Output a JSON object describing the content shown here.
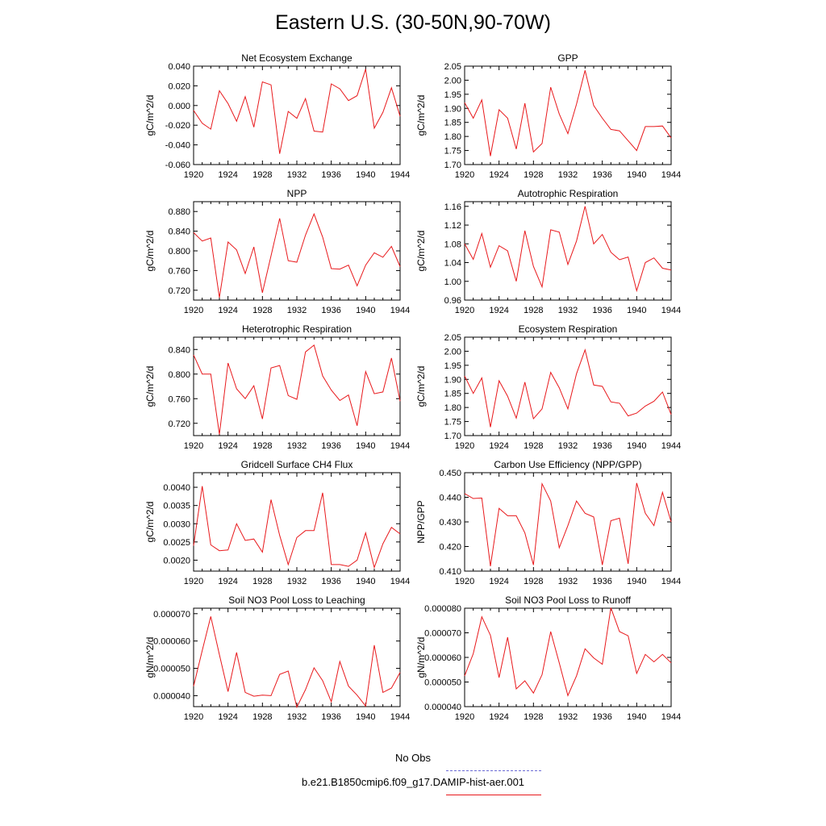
{
  "figure": {
    "title": "Eastern U.S. (30-50N,90-70W)",
    "legend": [
      {
        "label": "No Obs",
        "color": "#6b6bd6",
        "style": "dashed"
      },
      {
        "label": "b.e21.B1850cmip6.f09_g17.DAMIP-hist-aer.001",
        "color": "#e8191c",
        "style": "solid"
      }
    ]
  },
  "chart_data": [
    {
      "type": "line",
      "title": "Net Ecosystem Exchange",
      "ylabel": "gC/m^2/d",
      "xlim": [
        1920,
        1944
      ],
      "ylim": [
        -0.06,
        0.04
      ],
      "xticks": [
        "1920",
        "1924",
        "1928",
        "1932",
        "1936",
        "1940",
        "1944"
      ],
      "yticks": [
        "-0.060",
        "-0.040",
        "-0.020",
        "0.000",
        "0.020",
        "0.040"
      ],
      "x": [
        1920,
        1921,
        1922,
        1923,
        1924,
        1925,
        1926,
        1927,
        1928,
        1929,
        1930,
        1931,
        1932,
        1933,
        1934,
        1935,
        1936,
        1937,
        1938,
        1939,
        1940,
        1941,
        1942,
        1943,
        1944
      ],
      "series": [
        {
          "values": [
            -0.005,
            -0.018,
            -0.024,
            0.015,
            0.002,
            -0.016,
            0.009,
            -0.022,
            0.024,
            0.021,
            -0.049,
            -0.006,
            -0.013,
            0.007,
            -0.026,
            -0.027,
            0.022,
            0.017,
            0.005,
            0.01,
            0.037,
            -0.023,
            -0.007,
            0.018,
            -0.011
          ]
        }
      ]
    },
    {
      "type": "line",
      "title": "GPP",
      "ylabel": "gC/m^2/d",
      "xlim": [
        1920,
        1944
      ],
      "ylim": [
        1.7,
        2.05
      ],
      "xticks": [
        "1920",
        "1924",
        "1928",
        "1932",
        "1936",
        "1940",
        "1944"
      ],
      "yticks": [
        "1.70",
        "1.75",
        "1.80",
        "1.85",
        "1.90",
        "1.95",
        "2.00",
        "2.05"
      ],
      "x": [
        1920,
        1921,
        1922,
        1923,
        1924,
        1925,
        1926,
        1927,
        1928,
        1929,
        1930,
        1931,
        1932,
        1933,
        1934,
        1935,
        1936,
        1937,
        1938,
        1939,
        1940,
        1941,
        1942,
        1943,
        1944
      ],
      "series": [
        {
          "values": [
            1.92,
            1.865,
            1.93,
            1.73,
            1.895,
            1.865,
            1.755,
            1.918,
            1.745,
            1.775,
            1.975,
            1.88,
            1.81,
            1.915,
            2.035,
            1.91,
            1.865,
            1.825,
            1.82,
            1.785,
            1.75,
            1.835,
            1.835,
            1.837,
            1.795
          ]
        }
      ]
    },
    {
      "type": "line",
      "title": "NPP",
      "ylabel": "gC/m^2/d",
      "xlim": [
        1920,
        1944
      ],
      "ylim": [
        0.7,
        0.9
      ],
      "xticks": [
        "1920",
        "1924",
        "1928",
        "1932",
        "1936",
        "1940",
        "1944"
      ],
      "yticks": [
        "0.720",
        "0.760",
        "0.800",
        "0.840",
        "0.880"
      ],
      "x": [
        1920,
        1921,
        1922,
        1923,
        1924,
        1925,
        1926,
        1927,
        1928,
        1929,
        1930,
        1931,
        1932,
        1933,
        1934,
        1935,
        1936,
        1937,
        1938,
        1939,
        1940,
        1941,
        1942,
        1943,
        1944
      ],
      "series": [
        {
          "values": [
            0.837,
            0.82,
            0.826,
            0.705,
            0.818,
            0.802,
            0.754,
            0.808,
            0.715,
            0.79,
            0.866,
            0.78,
            0.777,
            0.832,
            0.875,
            0.828,
            0.764,
            0.763,
            0.771,
            0.729,
            0.771,
            0.796,
            0.787,
            0.809,
            0.768
          ]
        }
      ]
    },
    {
      "type": "line",
      "title": "Autotrophic Respiration",
      "ylabel": "gC/m^2/d",
      "xlim": [
        1920,
        1944
      ],
      "ylim": [
        0.96,
        1.17
      ],
      "xticks": [
        "1920",
        "1924",
        "1928",
        "1932",
        "1936",
        "1940",
        "1944"
      ],
      "yticks": [
        "0.96",
        "1.00",
        "1.04",
        "1.08",
        "1.12",
        "1.16"
      ],
      "x": [
        1920,
        1921,
        1922,
        1923,
        1924,
        1925,
        1926,
        1927,
        1928,
        1929,
        1930,
        1931,
        1932,
        1933,
        1934,
        1935,
        1936,
        1937,
        1938,
        1939,
        1940,
        1941,
        1942,
        1943,
        1944
      ],
      "series": [
        {
          "values": [
            1.08,
            1.047,
            1.102,
            1.03,
            1.076,
            1.065,
            1.0,
            1.108,
            1.032,
            0.988,
            1.11,
            1.105,
            1.036,
            1.086,
            1.16,
            1.08,
            1.1,
            1.062,
            1.046,
            1.052,
            0.98,
            1.04,
            1.05,
            1.028,
            1.024
          ]
        }
      ]
    },
    {
      "type": "line",
      "title": "Heterotrophic Respiration",
      "ylabel": "gC/m^2/d",
      "xlim": [
        1920,
        1944
      ],
      "ylim": [
        0.7,
        0.86
      ],
      "xticks": [
        "1920",
        "1924",
        "1928",
        "1932",
        "1936",
        "1940",
        "1944"
      ],
      "yticks": [
        "0.720",
        "0.760",
        "0.800",
        "0.840"
      ],
      "x": [
        1920,
        1921,
        1922,
        1923,
        1924,
        1925,
        1926,
        1927,
        1928,
        1929,
        1930,
        1931,
        1932,
        1933,
        1934,
        1935,
        1936,
        1937,
        1938,
        1939,
        1940,
        1941,
        1942,
        1943,
        1944
      ],
      "series": [
        {
          "values": [
            0.831,
            0.8,
            0.8,
            0.702,
            0.818,
            0.776,
            0.76,
            0.781,
            0.727,
            0.81,
            0.814,
            0.765,
            0.759,
            0.836,
            0.847,
            0.797,
            0.774,
            0.757,
            0.766,
            0.716,
            0.804,
            0.768,
            0.771,
            0.826,
            0.756
          ]
        }
      ]
    },
    {
      "type": "line",
      "title": "Ecosystem Respiration",
      "ylabel": "gC/m^2/d",
      "xlim": [
        1920,
        1944
      ],
      "ylim": [
        1.7,
        2.05
      ],
      "xticks": [
        "1920",
        "1924",
        "1928",
        "1932",
        "1936",
        "1940",
        "1944"
      ],
      "yticks": [
        "1.70",
        "1.75",
        "1.80",
        "1.85",
        "1.90",
        "1.95",
        "2.00",
        "2.05"
      ],
      "x": [
        1920,
        1921,
        1922,
        1923,
        1924,
        1925,
        1926,
        1927,
        1928,
        1929,
        1930,
        1931,
        1932,
        1933,
        1934,
        1935,
        1936,
        1937,
        1938,
        1939,
        1940,
        1941,
        1942,
        1943,
        1944
      ],
      "series": [
        {
          "values": [
            1.912,
            1.85,
            1.905,
            1.73,
            1.895,
            1.84,
            1.762,
            1.89,
            1.76,
            1.795,
            1.925,
            1.87,
            1.795,
            1.92,
            2.005,
            1.88,
            1.875,
            1.82,
            1.815,
            1.77,
            1.78,
            1.805,
            1.822,
            1.855,
            1.775
          ]
        }
      ]
    },
    {
      "type": "line",
      "title": "Gridcell Surface CH4 Flux",
      "ylabel": "gC/m^2/d",
      "xlim": [
        1920,
        1944
      ],
      "ylim": [
        0.0017,
        0.0044
      ],
      "xticks": [
        "1920",
        "1924",
        "1928",
        "1932",
        "1936",
        "1940",
        "1944"
      ],
      "yticks": [
        "0.0020",
        "0.0025",
        "0.0030",
        "0.0035",
        "0.0040"
      ],
      "x": [
        1920,
        1921,
        1922,
        1923,
        1924,
        1925,
        1926,
        1927,
        1928,
        1929,
        1930,
        1931,
        1932,
        1933,
        1934,
        1935,
        1936,
        1937,
        1938,
        1939,
        1940,
        1941,
        1942,
        1943,
        1944
      ],
      "series": [
        {
          "values": [
            0.0024,
            0.00403,
            0.00242,
            0.00226,
            0.00228,
            0.003,
            0.00254,
            0.00258,
            0.00222,
            0.00366,
            0.00268,
            0.00188,
            0.00262,
            0.00281,
            0.00281,
            0.00385,
            0.00188,
            0.00188,
            0.00183,
            0.002,
            0.00275,
            0.0018,
            0.00245,
            0.0029,
            0.00272
          ]
        }
      ]
    },
    {
      "type": "line",
      "title": "Carbon Use Efficiency (NPP/GPP)",
      "ylabel": "NPP/GPP",
      "xlim": [
        1920,
        1944
      ],
      "ylim": [
        0.41,
        0.45
      ],
      "xticks": [
        "1920",
        "1924",
        "1928",
        "1932",
        "1936",
        "1940",
        "1944"
      ],
      "yticks": [
        "0.410",
        "0.420",
        "0.430",
        "0.440",
        "0.450"
      ],
      "x": [
        1920,
        1921,
        1922,
        1923,
        1924,
        1925,
        1926,
        1927,
        1928,
        1929,
        1930,
        1931,
        1932,
        1933,
        1934,
        1935,
        1936,
        1937,
        1938,
        1939,
        1940,
        1941,
        1942,
        1943,
        1944
      ],
      "series": [
        {
          "values": [
            0.4415,
            0.4395,
            0.4397,
            0.412,
            0.4355,
            0.4325,
            0.4325,
            0.4255,
            0.4125,
            0.4455,
            0.4385,
            0.4195,
            0.4285,
            0.4385,
            0.4335,
            0.432,
            0.4125,
            0.4305,
            0.4315,
            0.413,
            0.4458,
            0.4335,
            0.4285,
            0.442,
            0.43
          ]
        }
      ]
    },
    {
      "type": "line",
      "title": "Soil NO3 Pool Loss to Leaching",
      "ylabel": "gN/m^2/d",
      "xlim": [
        1920,
        1944
      ],
      "ylim": [
        3.6e-05,
        7.2e-05
      ],
      "xticks": [
        "1920",
        "1924",
        "1928",
        "1932",
        "1936",
        "1940",
        "1944"
      ],
      "yticks": [
        "0.000040",
        "0.000050",
        "0.000060",
        "0.000070"
      ],
      "x": [
        1920,
        1921,
        1922,
        1923,
        1924,
        1925,
        1926,
        1927,
        1928,
        1929,
        1930,
        1931,
        1932,
        1933,
        1934,
        1935,
        1936,
        1937,
        1938,
        1939,
        1940,
        1941,
        1942,
        1943,
        1944
      ],
      "series": [
        {
          "values": [
            4.35e-05,
            5.65e-05,
            6.9e-05,
            5.5e-05,
            4.15e-05,
            5.58e-05,
            4.12e-05,
            3.98e-05,
            4.02e-05,
            4e-05,
            4.78e-05,
            4.9e-05,
            3.58e-05,
            4.22e-05,
            5.02e-05,
            4.55e-05,
            3.78e-05,
            5.25e-05,
            4.35e-05,
            4.02e-05,
            3.62e-05,
            5.85e-05,
            4.12e-05,
            4.28e-05,
            4.85e-05
          ]
        }
      ]
    },
    {
      "type": "line",
      "title": "Soil NO3 Pool Loss to Runoff",
      "ylabel": "gN/m^2/d",
      "xlim": [
        1920,
        1944
      ],
      "ylim": [
        4e-05,
        8e-05
      ],
      "xticks": [
        "1920",
        "1924",
        "1928",
        "1932",
        "1936",
        "1940",
        "1944"
      ],
      "yticks": [
        "0.000040",
        "0.000050",
        "0.000060",
        "0.000070",
        "0.000080"
      ],
      "x": [
        1920,
        1921,
        1922,
        1923,
        1924,
        1925,
        1926,
        1927,
        1928,
        1929,
        1930,
        1931,
        1932,
        1933,
        1934,
        1935,
        1936,
        1937,
        1938,
        1939,
        1940,
        1941,
        1942,
        1943,
        1944
      ],
      "series": [
        {
          "values": [
            5.25e-05,
            6.15e-05,
            7.65e-05,
            6.9e-05,
            5.18e-05,
            6.82e-05,
            4.72e-05,
            5.05e-05,
            4.55e-05,
            5.3e-05,
            7.05e-05,
            5.78e-05,
            4.45e-05,
            5.25e-05,
            6.35e-05,
            5.98e-05,
            5.72e-05,
            8.02e-05,
            7.05e-05,
            6.88e-05,
            5.35e-05,
            6.12e-05,
            5.82e-05,
            6.12e-05,
            5.78e-05
          ]
        }
      ]
    }
  ]
}
